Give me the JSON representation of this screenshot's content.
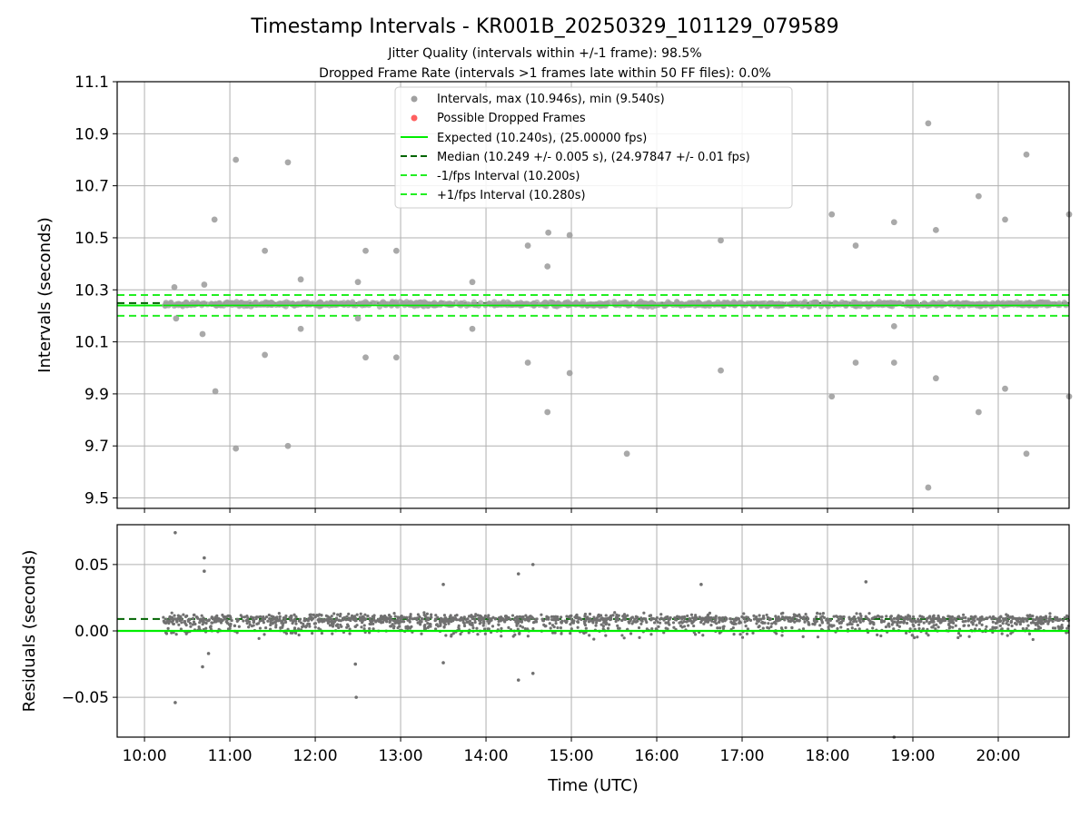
{
  "chart_data": [
    {
      "type": "scatter",
      "title": "Timestamp Intervals - KR001B_20250329_101129_079589",
      "subtitle_1": "Jitter Quality (intervals within +/-1 frame): 98.5%",
      "subtitle_2": "Dropped Frame Rate (intervals >1 frames late within 50 FF files): 0.0%",
      "ylabel": "Intervals (seconds)",
      "ylim": [
        9.46,
        11.1
      ],
      "xlim_hours": [
        9.68,
        20.83
      ],
      "yticks": [
        "9.5",
        "9.7",
        "9.9",
        "10.1",
        "10.3",
        "10.5",
        "10.7",
        "10.9",
        "11.1"
      ],
      "grid": true,
      "legend_position": "upper center",
      "legend": [
        "Intervals, max (10.946s), min (9.540s)",
        "Possible Dropped Frames",
        "Expected (10.240s), (25.00000 fps)",
        "Median (10.249 +/- 0.005 s), (24.97847 +/- 0.01 fps)",
        "-1/fps Interval (10.200s)",
        "+1/fps Interval (10.280s)"
      ],
      "reference_lines": {
        "expected": 10.24,
        "median": 10.249,
        "minus_1_fps": 10.2,
        "plus_1_fps": 10.28
      },
      "series": [
        {
          "name": "Intervals, max (10.946s), min (9.540s)",
          "points": [
            [
              10.35,
              10.31
            ],
            [
              10.37,
              10.19
            ],
            [
              10.7,
              10.32
            ],
            [
              10.68,
              10.13
            ],
            [
              10.82,
              10.57
            ],
            [
              10.83,
              9.91
            ],
            [
              11.07,
              10.8
            ],
            [
              11.07,
              9.69
            ],
            [
              11.41,
              10.45
            ],
            [
              11.41,
              10.05
            ],
            [
              11.68,
              10.79
            ],
            [
              11.68,
              9.7
            ],
            [
              11.83,
              10.34
            ],
            [
              11.83,
              10.15
            ],
            [
              12.5,
              10.33
            ],
            [
              12.5,
              10.19
            ],
            [
              12.59,
              10.45
            ],
            [
              12.59,
              10.04
            ],
            [
              12.95,
              10.45
            ],
            [
              12.95,
              10.04
            ],
            [
              13.84,
              10.33
            ],
            [
              13.84,
              10.15
            ],
            [
              14.49,
              10.47
            ],
            [
              14.49,
              10.02
            ],
            [
              14.73,
              10.52
            ],
            [
              14.72,
              10.39
            ],
            [
              14.72,
              9.83
            ],
            [
              14.98,
              10.51
            ],
            [
              14.98,
              9.98
            ],
            [
              15.65,
              9.67
            ],
            [
              16.75,
              10.49
            ],
            [
              16.75,
              9.99
            ],
            [
              18.05,
              10.59
            ],
            [
              18.05,
              9.89
            ],
            [
              18.33,
              10.47
            ],
            [
              18.33,
              10.02
            ],
            [
              18.78,
              10.56
            ],
            [
              18.78,
              10.16
            ],
            [
              18.78,
              10.02
            ],
            [
              19.18,
              10.94
            ],
            [
              19.18,
              9.54
            ],
            [
              19.27,
              10.53
            ],
            [
              19.27,
              9.96
            ],
            [
              19.77,
              10.66
            ],
            [
              19.77,
              9.83
            ],
            [
              20.08,
              10.57
            ],
            [
              20.08,
              9.92
            ],
            [
              20.33,
              10.82
            ],
            [
              20.33,
              9.67
            ],
            [
              20.83,
              10.59
            ],
            [
              20.83,
              9.89
            ]
          ]
        },
        {
          "name": "Possible Dropped Frames",
          "points": []
        }
      ]
    },
    {
      "type": "scatter",
      "ylabel": "Residuals (seconds)",
      "xlabel": "Time (UTC)",
      "ylim": [
        -0.08,
        0.08
      ],
      "yticks": [
        "−0.05",
        "0.00",
        "0.05"
      ],
      "xticks": [
        "10:00",
        "11:00",
        "12:00",
        "13:00",
        "14:00",
        "15:00",
        "16:00",
        "17:00",
        "18:00",
        "19:00",
        "20:00"
      ],
      "grid": true,
      "reference_lines": {
        "zero": 0.0,
        "median_offset": 0.009
      },
      "outlier_points": [
        [
          10.36,
          0.074
        ],
        [
          10.36,
          -0.054
        ],
        [
          10.7,
          0.055
        ],
        [
          10.7,
          0.045
        ],
        [
          10.68,
          -0.027
        ],
        [
          10.75,
          -0.017
        ],
        [
          12.47,
          -0.025
        ],
        [
          12.48,
          -0.05
        ],
        [
          13.5,
          0.035
        ],
        [
          13.5,
          -0.024
        ],
        [
          14.38,
          0.043
        ],
        [
          14.38,
          -0.037
        ],
        [
          14.55,
          0.05
        ],
        [
          14.55,
          -0.032
        ],
        [
          16.52,
          0.035
        ],
        [
          18.45,
          0.037
        ],
        [
          18.78,
          -0.08
        ]
      ]
    }
  ],
  "colors": {
    "points": "#a0a0a0",
    "residual_points": "#707070",
    "expected": "#00ee00",
    "median": "#006400",
    "interval_bounds": "#22ee22",
    "dropped": "#ff6060"
  }
}
